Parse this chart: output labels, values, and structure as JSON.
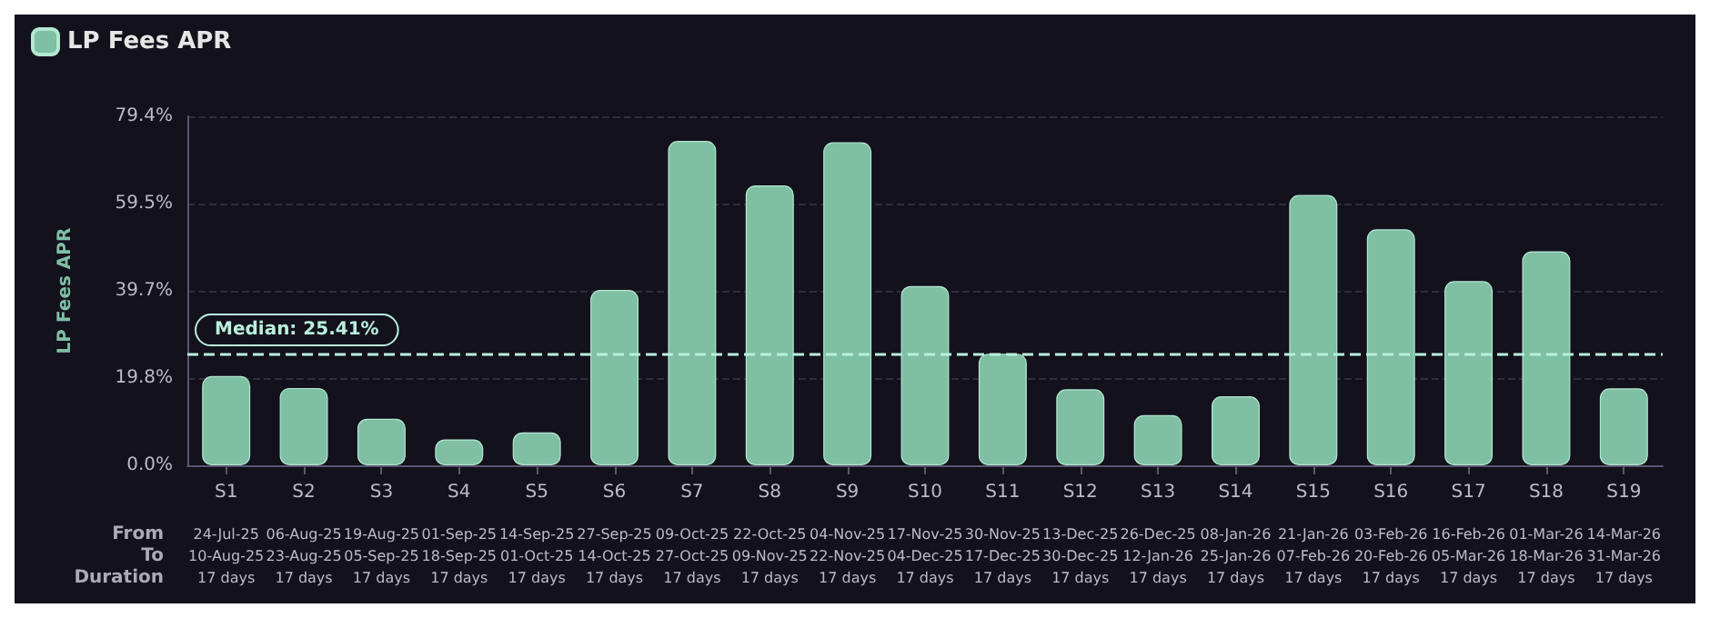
{
  "chart_data": {
    "type": "bar",
    "ylabel": "LP Fees APR",
    "categories": [
      "S1",
      "S2",
      "S3",
      "S4",
      "S5",
      "S6",
      "S7",
      "S8",
      "S9",
      "S10",
      "S11",
      "S12",
      "S13",
      "S14",
      "S15",
      "S16",
      "S17",
      "S18",
      "S19"
    ],
    "series": [
      {
        "name": "LP Fees APR",
        "color": "#7fbfa4",
        "values": [
          20.3,
          17.6,
          10.6,
          5.9,
          7.5,
          39.9,
          73.8,
          63.7,
          73.5,
          40.8,
          25.4,
          17.3,
          11.4,
          15.7,
          61.5,
          53.7,
          41.9,
          48.7,
          17.5
        ]
      }
    ],
    "ylim": [
      0,
      79.4
    ],
    "yticks": [
      {
        "value": 0,
        "label": "0.0%"
      },
      {
        "value": 19.8,
        "label": "19.8%"
      },
      {
        "value": 39.7,
        "label": "39.7%"
      },
      {
        "value": 59.5,
        "label": "59.5%"
      },
      {
        "value": 79.4,
        "label": "79.4%"
      }
    ],
    "grid": "y",
    "legend": "top left",
    "ref_lines": [
      {
        "axis": "y",
        "value": 25.41,
        "label": "Median: 25.41%",
        "color": "#b9f0dc",
        "line_style": "dashed"
      }
    ],
    "annotations": [
      "From",
      "To",
      "Duration",
      "24-Jul-25",
      "10-Aug-25",
      "17 days",
      "06-Aug-25",
      "23-Aug-25",
      "17 days",
      "19-Aug-25",
      "05-Sep-25",
      "17 days",
      "01-Sep-25",
      "18-Sep-25",
      "17 days",
      "14-Sep-25",
      "01-Oct-25",
      "17 days",
      "27-Sep-25",
      "14-Oct-25",
      "17 days",
      "09-Oct-25",
      "27-Oct-25",
      "17 days",
      "22-Oct-25",
      "09-Nov-25",
      "17 days",
      "04-Nov-25",
      "22-Nov-25",
      "17 days",
      "17-Nov-25",
      "04-Dec-25",
      "17 days",
      "30-Nov-25",
      "17-Dec-25",
      "17 days",
      "13-Dec-25",
      "30-Dec-25",
      "17 days",
      "26-Dec-25",
      "12-Jan-26",
      "17 days",
      "08-Jan-26",
      "25-Jan-26",
      "17 days",
      "21-Jan-26",
      "07-Feb-26",
      "17 days",
      "03-Feb-26",
      "20-Feb-26",
      "17 days",
      "16-Feb-26",
      "05-Mar-26",
      "17 days",
      "01-Mar-26",
      "18-Mar-26",
      "17 days",
      "14-Mar-26",
      "31-Mar-26",
      "17 days"
    ]
  }
}
